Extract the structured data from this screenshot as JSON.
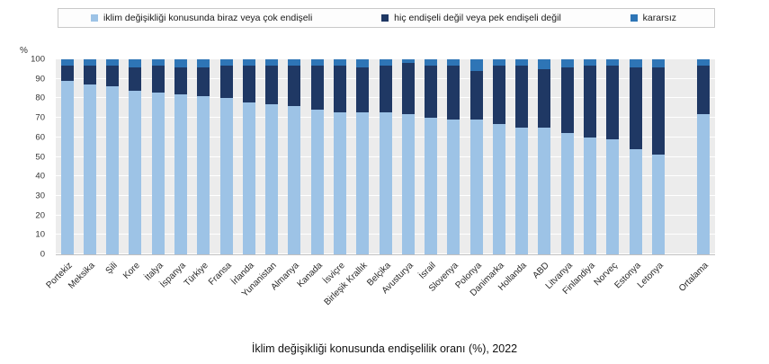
{
  "chart_data": {
    "type": "bar",
    "stacked": true,
    "title": "İklim değişikliği konusunda endişelilik oranı (%), 2022",
    "unit_label": "%",
    "ylim": [
      0,
      100
    ],
    "ytick_step": 10,
    "grid": true,
    "legend_position": "top",
    "gap_before_index": 27,
    "plot_background": "#ececec",
    "categories": [
      "Portekiz",
      "Meksika",
      "Şili",
      "Kore",
      "İtalya",
      "İspanya",
      "Türkiye",
      "Fransa",
      "İrlanda",
      "Yunanistan",
      "Almanya",
      "Kanada",
      "İsviçre",
      "Birleşik Krallık",
      "Belçika",
      "Avusturya",
      "İsrail",
      "Slovenya",
      "Polonya",
      "Danimarka",
      "Hollanda",
      "ABD",
      "Litvanya",
      "Finlandiya",
      "Norveç",
      "Estonya",
      "Letonya",
      "Ortalama"
    ],
    "series": [
      {
        "name": "iklim değişikliği konusunda biraz veya çok endişeli",
        "color": "#9dc3e6",
        "values": [
          89,
          87,
          86,
          84,
          83,
          82,
          81,
          80,
          78,
          77,
          76,
          74,
          73,
          73,
          73,
          72,
          70,
          69,
          69,
          67,
          65,
          65,
          62,
          60,
          59,
          54,
          51,
          72
        ]
      },
      {
        "name": "hiç endişeli değil veya pek endişeli değil",
        "color": "#1f3864",
        "values": [
          8,
          10,
          11,
          12,
          14,
          14,
          15,
          17,
          19,
          20,
          21,
          23,
          24,
          23,
          24,
          26,
          27,
          28,
          25,
          30,
          32,
          30,
          34,
          37,
          38,
          42,
          45,
          25
        ]
      },
      {
        "name": "kararsız",
        "color": "#2e75b6",
        "values": [
          3,
          3,
          3,
          4,
          3,
          4,
          4,
          3,
          3,
          3,
          3,
          3,
          3,
          4,
          3,
          2,
          3,
          3,
          6,
          3,
          3,
          5,
          4,
          3,
          3,
          4,
          4,
          3
        ]
      }
    ]
  }
}
